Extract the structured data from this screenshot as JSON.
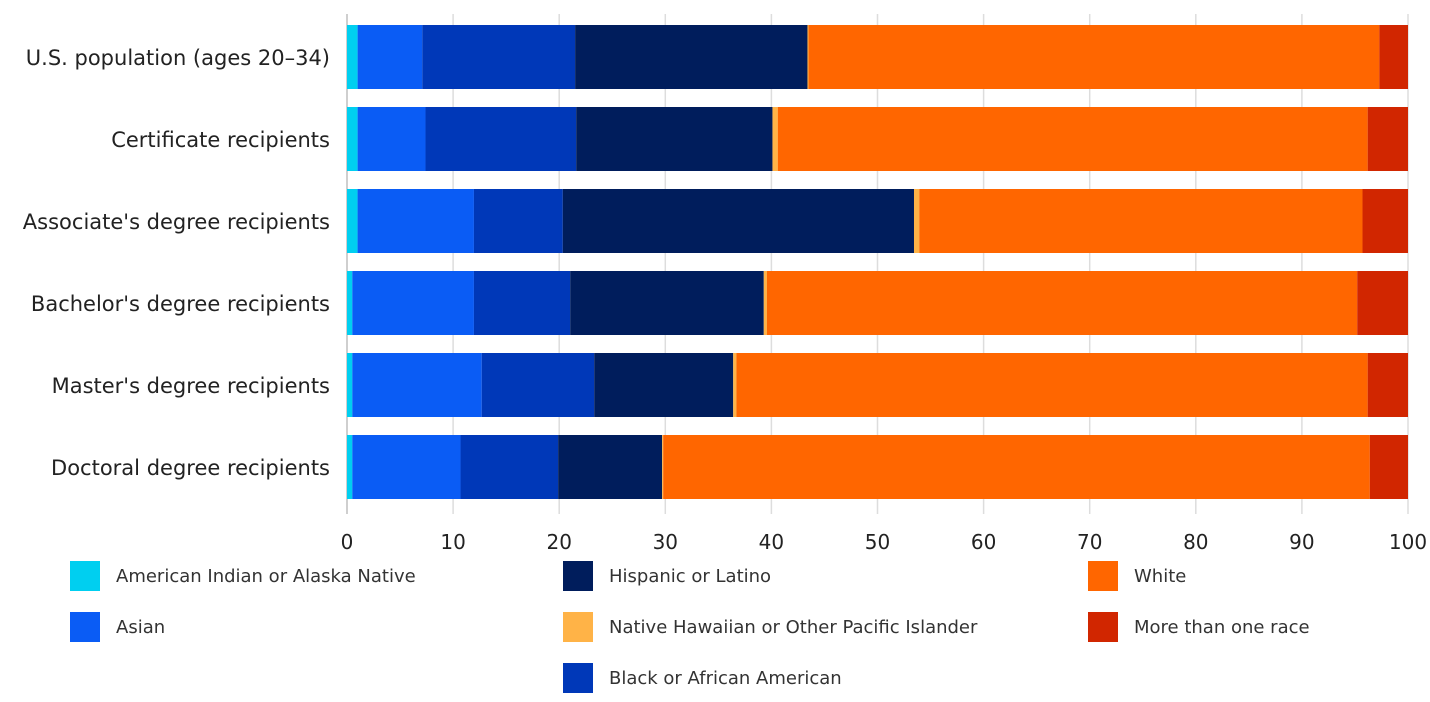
{
  "chart_data": {
    "type": "bar",
    "orientation": "horizontal",
    "stacked": true,
    "categories": [
      "U.S. population (ages 20–34)",
      "Certificate recipients",
      "Associate's degree recipients",
      "Bachelor's degree recipients",
      "Master's degree recipients",
      "Doctoral degree recipients"
    ],
    "series": [
      {
        "name": "American Indian or Alaska Native",
        "color": "#00cff0",
        "values": [
          1.0,
          1.0,
          1.0,
          0.5,
          0.5,
          0.5
        ]
      },
      {
        "name": "Asian",
        "color": "#0a5cf5",
        "values": [
          6.1,
          6.4,
          11.0,
          11.5,
          12.2,
          10.2
        ]
      },
      {
        "name": "Black or African American",
        "color": "#0038b8",
        "values": [
          14.4,
          14.2,
          8.4,
          9.1,
          10.6,
          9.2
        ]
      },
      {
        "name": "Hispanic or Latino",
        "color": "#001d5c",
        "values": [
          21.9,
          18.5,
          33.2,
          18.3,
          13.1,
          9.8
        ]
      },
      {
        "name": "Native Hawaiian or Other Pacific Islander",
        "color": "#ffb347",
        "values": [
          0.1,
          0.5,
          0.5,
          0.3,
          0.3,
          0.1
        ]
      },
      {
        "name": "White",
        "color": "#ff6600",
        "values": [
          53.8,
          55.6,
          41.9,
          55.8,
          59.5,
          66.6
        ]
      },
      {
        "name": "More than one race",
        "color": "#d12600",
        "values": [
          2.7,
          3.8,
          4.3,
          4.8,
          3.8,
          3.6
        ]
      }
    ],
    "xlim": [
      0,
      100
    ],
    "xticks": [
      "0",
      "10",
      "20",
      "30",
      "40",
      "50",
      "60",
      "70",
      "80",
      "90",
      "100"
    ],
    "grid": "vertical",
    "legend_position": "bottom"
  }
}
